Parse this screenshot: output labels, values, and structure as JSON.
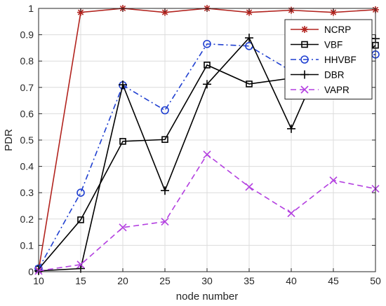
{
  "chart_data": {
    "type": "line",
    "title": "",
    "xlabel": "node number",
    "ylabel": "PDR",
    "xlim": [
      10,
      50
    ],
    "ylim": [
      0,
      1
    ],
    "xticks": [
      10,
      15,
      20,
      25,
      30,
      35,
      40,
      45,
      50
    ],
    "yticks": [
      0,
      0.1,
      0.2,
      0.3,
      0.4,
      0.5,
      0.6,
      0.7,
      0.8,
      0.9,
      1
    ],
    "xtick_labels": [
      "10",
      "15",
      "20",
      "25",
      "30",
      "35",
      "40",
      "45",
      "50"
    ],
    "ytick_labels": [
      "0",
      "0.1",
      "0.2",
      "0.3",
      "0.4",
      "0.5",
      "0.6",
      "0.7",
      "0.8",
      "0.9",
      "1"
    ],
    "grid": true,
    "legend_position": "top-right",
    "x": [
      10,
      15,
      20,
      25,
      30,
      35,
      40,
      45,
      50
    ],
    "series": [
      {
        "name": "NCRP",
        "values": [
          0.005,
          0.985,
          1.0,
          0.985,
          1.0,
          0.985,
          0.993,
          0.985,
          0.995
        ],
        "color": "#b2231e",
        "marker": "asterisk",
        "dash": "solid"
      },
      {
        "name": "VBF",
        "values": [
          0.01,
          0.197,
          0.495,
          0.502,
          0.785,
          0.713,
          0.735,
          0.715,
          0.86
        ],
        "color": "#000000",
        "marker": "square",
        "dash": "solid"
      },
      {
        "name": "HHVBF",
        "values": [
          0.012,
          0.3,
          0.708,
          0.613,
          0.865,
          0.857,
          0.762,
          0.805,
          0.825
        ],
        "color": "#1f3fd0",
        "marker": "circle",
        "dash": "dashdot"
      },
      {
        "name": "DBR",
        "values": [
          0.003,
          0.012,
          0.71,
          0.308,
          0.712,
          0.888,
          0.543,
          0.905,
          0.885
        ],
        "color": "#000000",
        "marker": "plus",
        "dash": "solid"
      },
      {
        "name": "VAPR",
        "values": [
          0.003,
          0.027,
          0.168,
          0.19,
          0.445,
          0.322,
          0.222,
          0.347,
          0.315
        ],
        "color": "#b33fe0",
        "marker": "x",
        "dash": "dashed"
      }
    ]
  }
}
